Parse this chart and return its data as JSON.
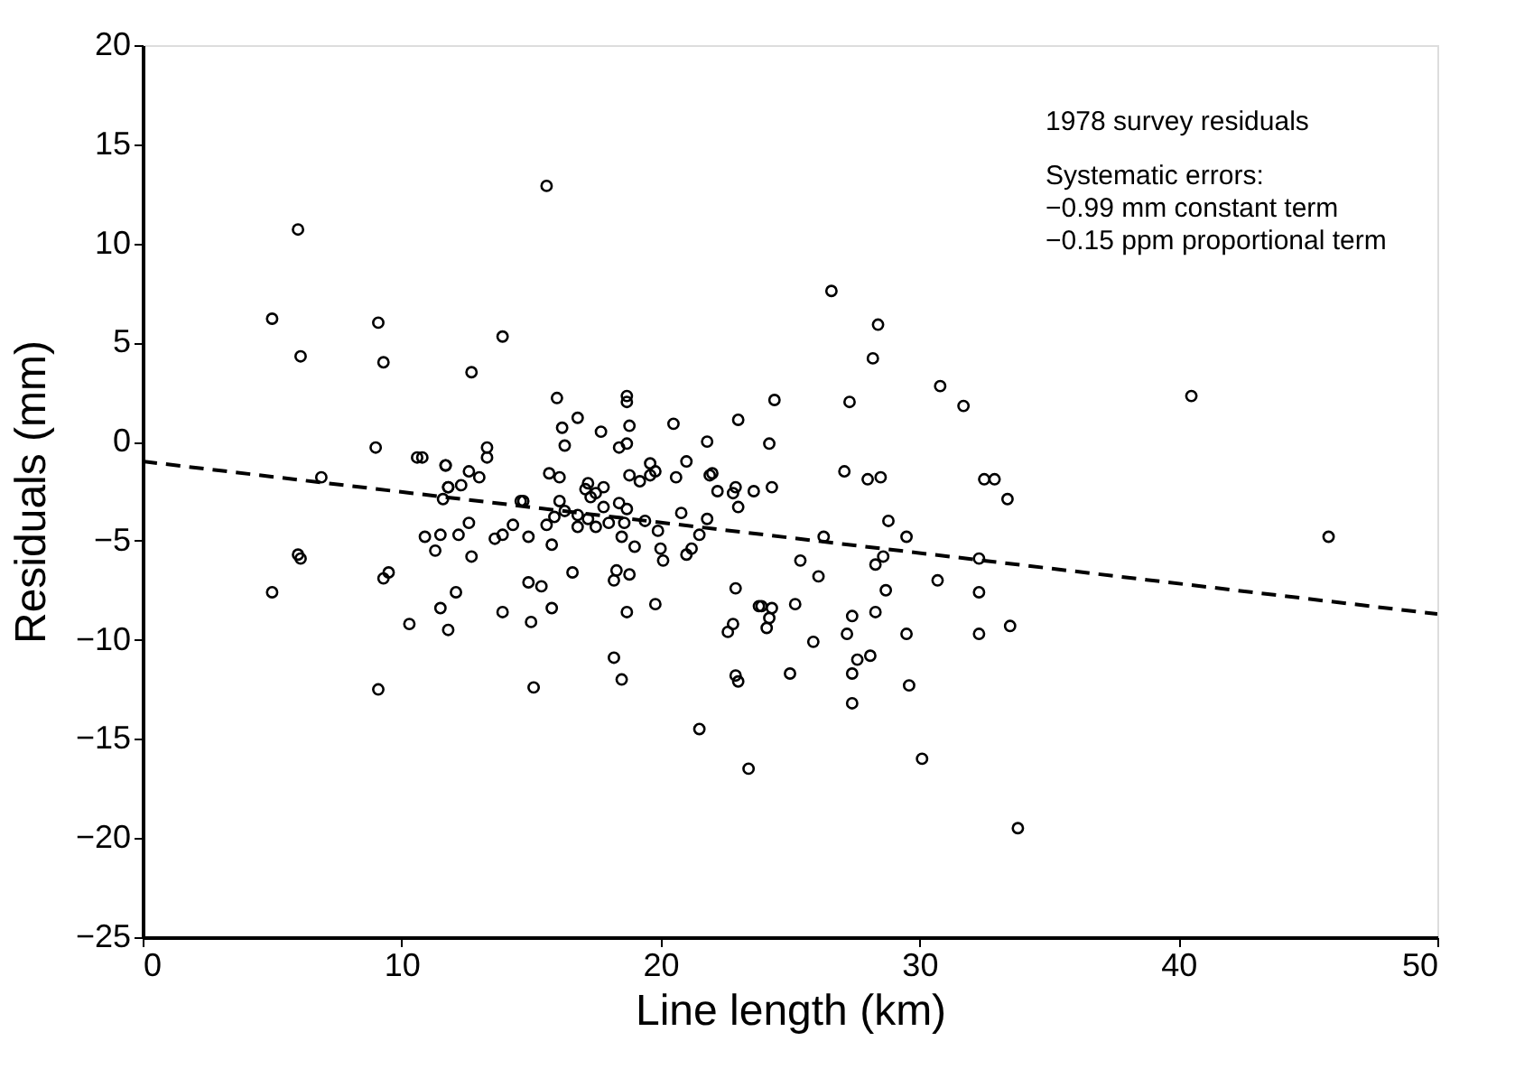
{
  "chart_data": {
    "type": "scatter",
    "xlabel": "Line length (km)",
    "ylabel": "Residuals (mm)",
    "xlim": [
      0,
      50
    ],
    "xticks": [
      0,
      10,
      20,
      30,
      40,
      50
    ],
    "ylim": [
      -25,
      20
    ],
    "yticks": [
      -25,
      -20,
      -15,
      -10,
      -5,
      0,
      5,
      10,
      15,
      20
    ],
    "grid": false,
    "annotations": [
      "1978 survey residuals",
      "Systematic errors:",
      "−0.99 mm constant term",
      "−0.15 ppm proportional term"
    ],
    "series": [
      {
        "color": "#000000",
        "marker": "circle",
        "x": [
          6.0,
          5.0,
          9.1,
          6.1,
          9.3,
          9.0,
          10.6,
          10.8,
          11.7,
          6.9,
          11.8,
          11.6,
          10.9,
          11.5,
          11.3,
          6.0,
          6.1,
          9.5,
          9.3,
          5.0,
          11.5,
          10.3,
          11.8,
          9.1,
          13.9,
          12.7,
          16.0,
          18.7,
          18.7,
          16.8,
          16.2,
          17.7,
          18.8,
          20.5,
          23.0,
          16.3,
          18.7,
          18.4,
          21.8,
          13.3,
          13.3,
          11.7,
          21.0,
          19.6,
          19.8,
          19.6,
          18.8,
          12.6,
          13.0,
          11.8,
          12.3,
          15.7,
          16.1,
          20.6,
          21.9,
          22.0,
          19.2,
          17.2,
          17.1,
          17.5,
          17.8,
          17.3,
          22.2,
          22.9,
          22.8,
          23.6,
          14.6,
          14.7,
          16.1,
          18.4,
          23.0,
          17.8,
          18.7,
          16.3,
          16.8,
          15.9,
          17.2,
          17.5,
          18.0,
          18.6,
          19.4,
          20.8,
          21.8,
          16.8,
          15.6,
          14.3,
          12.6,
          19.9,
          21.5,
          12.2,
          13.9,
          13.6,
          14.9,
          18.5,
          15.8,
          19.0,
          20.0,
          21.2,
          21.0,
          20.1,
          12.7,
          16.6,
          18.3,
          18.2,
          18.8,
          14.9,
          15.4,
          22.9,
          12.1,
          13.9,
          15.8,
          18.7,
          19.8,
          23.8,
          15.0,
          22.8,
          22.6,
          18.2,
          18.5,
          22.9,
          23.0,
          15.1,
          21.5,
          23.4,
          15.6,
          26.6,
          28.4,
          28.2,
          30.8,
          31.7,
          24.4,
          27.3,
          24.2,
          24.3,
          27.1,
          28.0,
          28.5,
          32.5,
          32.9,
          33.4,
          28.8,
          29.5,
          26.3,
          25.4,
          26.1,
          28.6,
          28.3,
          30.7,
          32.3,
          32.3,
          28.7,
          23.9,
          24.3,
          24.2,
          24.1,
          25.2,
          27.4,
          28.3,
          27.2,
          25.9,
          29.5,
          32.3,
          33.5,
          28.1,
          27.6,
          25.0,
          27.4,
          27.4,
          29.6,
          30.1,
          33.8,
          40.5,
          45.8
        ],
        "values": [
          10.7,
          6.2,
          6.0,
          4.3,
          4.0,
          -0.3,
          -0.8,
          -0.8,
          -1.2,
          -1.8,
          -2.3,
          -2.9,
          -4.8,
          -4.7,
          -5.5,
          -5.7,
          -5.9,
          -6.6,
          -6.9,
          -7.6,
          -8.4,
          -9.2,
          -9.5,
          -12.5,
          5.3,
          3.5,
          2.2,
          2.3,
          2.0,
          1.2,
          0.7,
          0.5,
          0.8,
          0.9,
          1.1,
          -0.2,
          -0.1,
          -0.3,
          0.0,
          -0.3,
          -0.8,
          -1.2,
          -1.0,
          -1.1,
          -1.5,
          -1.7,
          -1.7,
          -1.5,
          -1.8,
          -2.3,
          -2.2,
          -1.6,
          -1.8,
          -1.8,
          -1.7,
          -1.6,
          -2.0,
          -2.1,
          -2.4,
          -2.6,
          -2.3,
          -2.8,
          -2.5,
          -2.3,
          -2.6,
          -2.5,
          -3.0,
          -3.0,
          -3.0,
          -3.1,
          -3.3,
          -3.3,
          -3.4,
          -3.5,
          -3.7,
          -3.8,
          -3.9,
          -4.3,
          -4.1,
          -4.1,
          -4.0,
          -3.6,
          -3.9,
          -4.3,
          -4.2,
          -4.2,
          -4.1,
          -4.5,
          -4.7,
          -4.7,
          -4.7,
          -4.9,
          -4.8,
          -4.8,
          -5.2,
          -5.3,
          -5.4,
          -5.4,
          -5.7,
          -6.0,
          -5.8,
          -6.6,
          -6.5,
          -7.0,
          -6.7,
          -7.1,
          -7.3,
          -7.4,
          -7.6,
          -8.6,
          -8.4,
          -8.6,
          -8.2,
          -8.3,
          -9.1,
          -9.2,
          -9.6,
          -10.9,
          -12.0,
          -11.8,
          -12.1,
          -12.4,
          -14.5,
          -16.5,
          12.9,
          7.6,
          5.9,
          4.2,
          2.8,
          1.8,
          2.1,
          2.0,
          -0.1,
          -2.3,
          -1.5,
          -1.9,
          -1.8,
          -1.9,
          -1.9,
          -2.9,
          -4.0,
          -4.8,
          -4.8,
          -6.0,
          -6.8,
          -5.8,
          -6.2,
          -7.0,
          -5.9,
          -7.6,
          -7.5,
          -8.3,
          -8.4,
          -8.9,
          -9.4,
          -8.2,
          -8.8,
          -8.6,
          -9.7,
          -10.1,
          -9.7,
          -9.7,
          -9.3,
          -10.8,
          -11.0,
          -11.7,
          -11.7,
          -13.2,
          -12.3,
          -16.0,
          -19.5,
          2.3,
          -4.8
        ]
      },
      {
        "type": "line",
        "color": "#000000",
        "marker": "none",
        "line_style": "dashed",
        "x": [
          0,
          50
        ],
        "values": [
          -1.0,
          -8.7
        ]
      }
    ]
  }
}
